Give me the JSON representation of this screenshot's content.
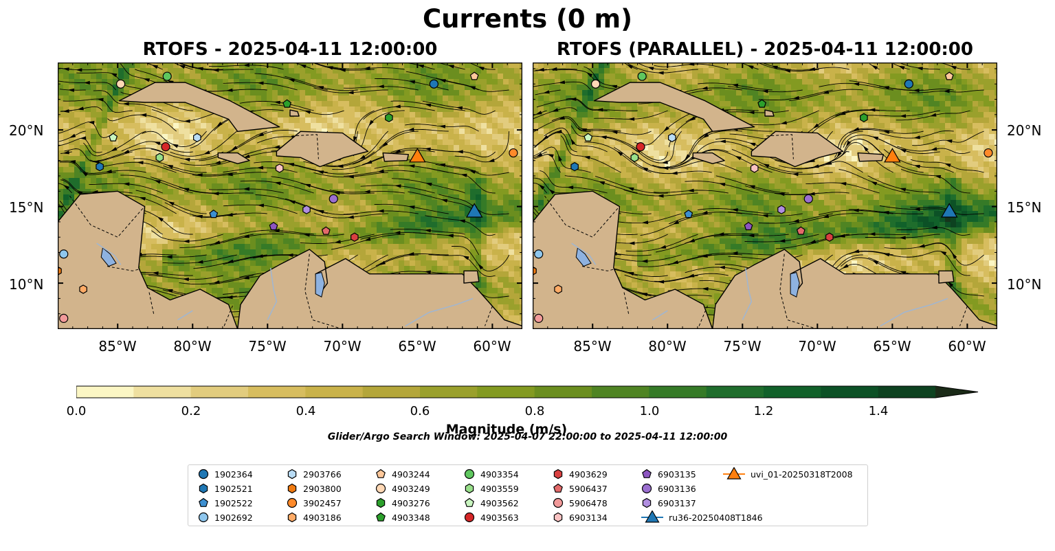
{
  "title": "Currents (0 m)",
  "panels": [
    {
      "id": "left",
      "title": "RTOFS - 2025-04-11 12:00:00"
    },
    {
      "id": "right",
      "title": "RTOFS (PARALLEL) - 2025-04-11 12:00:00"
    }
  ],
  "map_extent": {
    "lon": [
      -89,
      -58
    ],
    "lat": [
      7,
      24.4
    ]
  },
  "lat_ticks": [
    "20°N",
    "15°N",
    "10°N"
  ],
  "lon_ticks": [
    "85°W",
    "80°W",
    "75°W",
    "70°W",
    "65°W",
    "60°W"
  ],
  "colorbar": {
    "label": "Magnitude (m/s)",
    "ticks": [
      "0.0",
      "0.2",
      "0.4",
      "0.6",
      "0.8",
      "1.0",
      "1.2",
      "1.4"
    ],
    "range": [
      0,
      1.5
    ],
    "extend": "max",
    "colors": [
      "#fbf6c4",
      "#efe0a0",
      "#e2cc7e",
      "#d7bd5f",
      "#c9b24a",
      "#b4a63a",
      "#9aa02c",
      "#839a21",
      "#6b8e1f",
      "#4f8423",
      "#357a27",
      "#1f6d2c",
      "#11612a",
      "#0c5126",
      "#0d4220",
      "#17341b",
      "#1a2a17"
    ]
  },
  "search_window": "Glider/Argo Search Window: 2025-04-07 22:00:00 to 2025-04-11 12:00:00",
  "legend": [
    {
      "label": "1902364",
      "marker": "circle",
      "color": "#1f77b4"
    },
    {
      "label": "1902521",
      "marker": "hexagon",
      "color": "#1f77b4"
    },
    {
      "label": "1902522",
      "marker": "pentagon",
      "color": "#3d8fd0"
    },
    {
      "label": "1902692",
      "marker": "circle",
      "color": "#8fc7ee"
    },
    {
      "label": "2903766",
      "marker": "hexagon",
      "color": "#b9dcf5"
    },
    {
      "label": "2903800",
      "marker": "hexagon",
      "color": "#f07a10"
    },
    {
      "label": "3902457",
      "marker": "circle",
      "color": "#ff8a2a"
    },
    {
      "label": "4903186",
      "marker": "hexagon",
      "color": "#ffab66"
    },
    {
      "label": "4903244",
      "marker": "pentagon",
      "color": "#ffc89a"
    },
    {
      "label": "4903249",
      "marker": "circle",
      "color": "#ffd8b5"
    },
    {
      "label": "4903276",
      "marker": "hexagon",
      "color": "#2ca02c"
    },
    {
      "label": "4903348",
      "marker": "pentagon",
      "color": "#2ca02c"
    },
    {
      "label": "4903354",
      "marker": "circle",
      "color": "#5fc75f"
    },
    {
      "label": "4903559",
      "marker": "hexagon",
      "color": "#98df8a"
    },
    {
      "label": "4903562",
      "marker": "pentagon",
      "color": "#c9f5c0"
    },
    {
      "label": "4903563",
      "marker": "circle",
      "color": "#d62728"
    },
    {
      "label": "4903629",
      "marker": "hexagon",
      "color": "#d94040"
    },
    {
      "label": "5906437",
      "marker": "pentagon",
      "color": "#e36a6a"
    },
    {
      "label": "5906478",
      "marker": "circle",
      "color": "#f29a9a"
    },
    {
      "label": "6903134",
      "marker": "hexagon",
      "color": "#f9c2c2"
    },
    {
      "label": "6903135",
      "marker": "pentagon",
      "color": "#8c55c0"
    },
    {
      "label": "6903136",
      "marker": "circle",
      "color": "#9b6fd0"
    },
    {
      "label": "6903137",
      "marker": "hexagon",
      "color": "#b08ee0"
    },
    {
      "label": "ru36-20250408T1846",
      "marker": "triangle",
      "color": "#1f77b4"
    },
    {
      "label": "uvi_01-20250318T2008",
      "marker": "triangle",
      "color": "#ff7f0e"
    }
  ],
  "floats": [
    {
      "id": "1902364",
      "lon": -63.9,
      "lat": 23.0
    },
    {
      "id": "1902521",
      "lon": -86.2,
      "lat": 17.6
    },
    {
      "id": "1902522",
      "lon": -78.6,
      "lat": 14.5
    },
    {
      "id": "1902692",
      "lon": -88.6,
      "lat": 11.9
    },
    {
      "id": "2903766",
      "lon": -79.7,
      "lat": 19.5
    },
    {
      "id": "2903800",
      "lon": -89.0,
      "lat": 10.8
    },
    {
      "id": "3902457",
      "lon": -58.6,
      "lat": 18.5
    },
    {
      "id": "4903186",
      "lon": -87.3,
      "lat": 9.6
    },
    {
      "id": "4903244",
      "lon": -61.2,
      "lat": 23.5
    },
    {
      "id": "4903249",
      "lon": -84.8,
      "lat": 23.0
    },
    {
      "id": "4903276",
      "lon": -66.9,
      "lat": 20.8
    },
    {
      "id": "4903348",
      "lon": -73.7,
      "lat": 21.7
    },
    {
      "id": "4903354",
      "lon": -81.7,
      "lat": 23.5
    },
    {
      "id": "4903559",
      "lon": -82.2,
      "lat": 18.2
    },
    {
      "id": "4903562",
      "lon": -85.3,
      "lat": 19.5
    },
    {
      "id": "4903563",
      "lon": -81.8,
      "lat": 18.9
    },
    {
      "id": "4903629",
      "lon": -69.2,
      "lat": 13.0
    },
    {
      "id": "5906437",
      "lon": -71.1,
      "lat": 13.4
    },
    {
      "id": "5906478",
      "lon": -88.6,
      "lat": 7.7
    },
    {
      "id": "6903134",
      "lon": -74.2,
      "lat": 17.5
    },
    {
      "id": "6903135",
      "lon": -74.6,
      "lat": 13.7
    },
    {
      "id": "6903136",
      "lon": -70.6,
      "lat": 15.5
    },
    {
      "id": "6903137",
      "lon": -72.4,
      "lat": 14.8
    },
    {
      "id": "ru36-20250408T1846",
      "lon": -61.2,
      "lat": 14.6
    },
    {
      "id": "uvi_01-20250318T2008",
      "lon": -65.0,
      "lat": 18.2
    }
  ]
}
